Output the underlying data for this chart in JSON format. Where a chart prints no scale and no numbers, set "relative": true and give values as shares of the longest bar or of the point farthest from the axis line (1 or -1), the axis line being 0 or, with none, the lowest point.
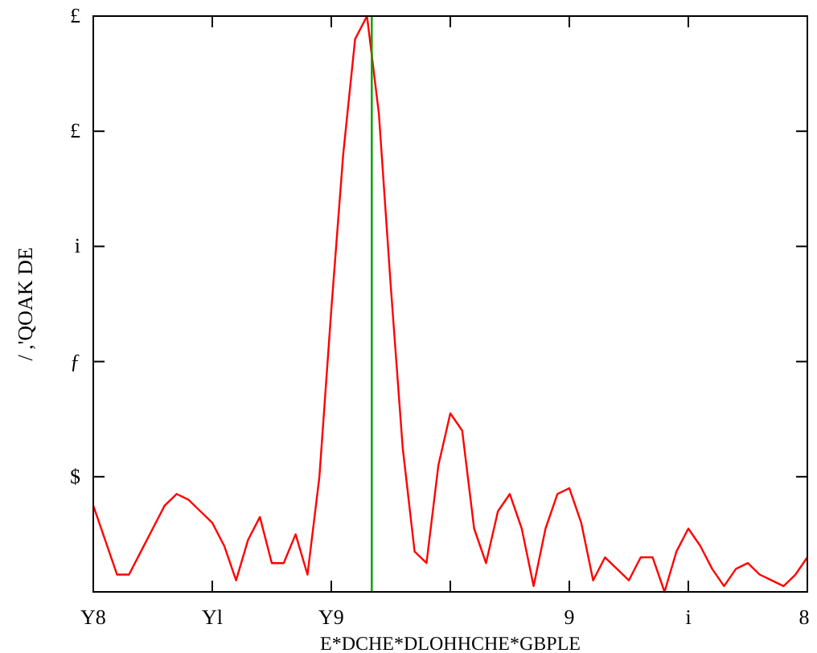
{
  "chart_data": {
    "type": "line",
    "xlabel": "E*DCHE*DLOHHCHE*GBPLE",
    "ylabel": "/ ,'QOAK DE",
    "relative": true,
    "categories": [
      null,
      null,
      null,
      null,
      null,
      null,
      null,
      null,
      null,
      null,
      null,
      null,
      null,
      null,
      null,
      null,
      null,
      null,
      null,
      null,
      null,
      null,
      null,
      null,
      null,
      null,
      null,
      null,
      null,
      null,
      null,
      null,
      null,
      null,
      null,
      null,
      null,
      null,
      null,
      null,
      null,
      null,
      null,
      null,
      null,
      null,
      null,
      null,
      null,
      null,
      null,
      null,
      null,
      null,
      null,
      null,
      null,
      null,
      null,
      null,
      null
    ],
    "series": [
      {
        "color": "#ff0000",
        "values": [
          0.15,
          0.09,
          0.03,
          0.03,
          0.07,
          0.11,
          0.15,
          0.17,
          0.16,
          0.14,
          0.12,
          0.08,
          0.02,
          0.09,
          0.13,
          0.05,
          0.05,
          0.1,
          0.03,
          0.2,
          0.49,
          0.76,
          0.96,
          1,
          0.83,
          0.53,
          0.25,
          0.07,
          0.05,
          0.22,
          0.31,
          0.28,
          0.11,
          0.05,
          0.14,
          0.17,
          0.11,
          0.01,
          0.11,
          0.17,
          0.18,
          0.12,
          0.02,
          0.06,
          0.04,
          0.02,
          0.06,
          0.06,
          0,
          0.07,
          0.11,
          0.08,
          0.04,
          0.01,
          0.04,
          0.05,
          0.03,
          0.02,
          0.01,
          0.03,
          0.06
        ]
      }
    ],
    "annotations": [
      "Y8",
      "Yl",
      "Y9",
      "9",
      "i",
      "8",
      "$",
      "ƒ",
      "i",
      "£",
      "£"
    ],
    "grid": false
  }
}
